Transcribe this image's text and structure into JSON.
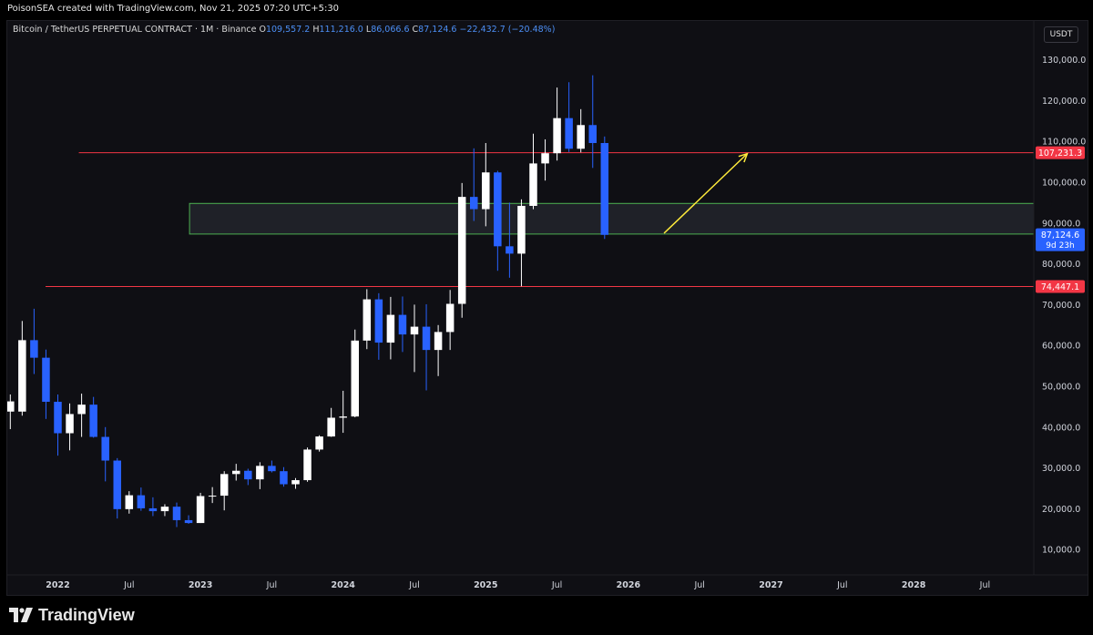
{
  "header": {
    "attribution": "PoisonSEA created with TradingView.com, Nov 21, 2025 07:20 UTC+5:30"
  },
  "legend": {
    "symbol": "Bitcoin / TetherUS PERPETUAL CONTRACT · 1M · Binance",
    "o_label": "O",
    "o_value": "109,557.2",
    "h_label": "H",
    "h_value": "111,216.0",
    "l_label": "L",
    "l_value": "86,066.6",
    "c_label": "C",
    "c_value": "87,124.6",
    "change": "−22,432.7 (−20.48%)"
  },
  "currency_button": "USDT",
  "branding": "TradingView",
  "colors": {
    "up_body": "#ffffff",
    "down_body": "#2962ff",
    "up_wick": "#ffffff",
    "down_wick": "#2962ff",
    "resistance_line": "#f23645",
    "zone_border": "#4caf50",
    "zone_fill": "#22252c",
    "arrow": "#ffeb3b",
    "axis_text": "#d1d4dc",
    "last_price_label": "#2962ff",
    "level_label": "#f23645"
  },
  "chart_data": {
    "type": "candlestick",
    "symbol": "BTCUSDT.P",
    "interval": "1M",
    "ylim": [
      0,
      137000
    ],
    "y_ticks": [
      10000,
      20000,
      30000,
      40000,
      50000,
      60000,
      70000,
      80000,
      90000,
      100000,
      110000,
      120000,
      130000
    ],
    "y_tick_labels": [
      "10,000.0",
      "20,000.0",
      "30,000.0",
      "40,000.0",
      "50,000.0",
      "60,000.0",
      "70,000.0",
      "80,000.0",
      "90,000.0",
      "100,000.0",
      "110,000.0",
      "120,000.0",
      "130,000.0"
    ],
    "x_ticks": [
      {
        "label": "2022",
        "month": 0
      },
      {
        "label": "Jul",
        "month": 6
      },
      {
        "label": "2023",
        "month": 12
      },
      {
        "label": "Jul",
        "month": 18
      },
      {
        "label": "2024",
        "month": 24
      },
      {
        "label": "Jul",
        "month": 30
      },
      {
        "label": "2025",
        "month": 36
      },
      {
        "label": "Jul",
        "month": 42
      },
      {
        "label": "2026",
        "month": 48
      },
      {
        "label": "Jul",
        "month": 54
      },
      {
        "label": "2027",
        "month": 60
      },
      {
        "label": "Jul",
        "month": 66
      },
      {
        "label": "2028",
        "month": 72
      },
      {
        "label": "Jul",
        "month": 78
      }
    ],
    "x_range_months": [
      -4,
      83
    ],
    "candles": [
      {
        "m": -4,
        "o": 43800,
        "h": 48000,
        "l": 39500,
        "c": 46300
      },
      {
        "m": -3,
        "o": 43800,
        "h": 66000,
        "l": 42800,
        "c": 61300
      },
      {
        "m": -2,
        "o": 61300,
        "h": 69000,
        "l": 53000,
        "c": 57000
      },
      {
        "m": -1,
        "o": 57000,
        "h": 59000,
        "l": 42000,
        "c": 46200
      },
      {
        "m": 0,
        "o": 46200,
        "h": 48000,
        "l": 33000,
        "c": 38500
      },
      {
        "m": 1,
        "o": 38500,
        "h": 45800,
        "l": 34300,
        "c": 43200
      },
      {
        "m": 2,
        "o": 43200,
        "h": 48200,
        "l": 37600,
        "c": 45500
      },
      {
        "m": 3,
        "o": 45500,
        "h": 47400,
        "l": 37400,
        "c": 37600
      },
      {
        "m": 4,
        "o": 37600,
        "h": 40000,
        "l": 26700,
        "c": 31800
      },
      {
        "m": 5,
        "o": 31800,
        "h": 32400,
        "l": 17600,
        "c": 19900
      },
      {
        "m": 6,
        "o": 19900,
        "h": 24300,
        "l": 18800,
        "c": 23300
      },
      {
        "m": 7,
        "o": 23300,
        "h": 25200,
        "l": 19500,
        "c": 20100
      },
      {
        "m": 8,
        "o": 20100,
        "h": 22800,
        "l": 18200,
        "c": 19400
      },
      {
        "m": 9,
        "o": 19400,
        "h": 21100,
        "l": 18200,
        "c": 20500
      },
      {
        "m": 10,
        "o": 20500,
        "h": 21500,
        "l": 15500,
        "c": 17200
      },
      {
        "m": 11,
        "o": 17200,
        "h": 18400,
        "l": 16300,
        "c": 16500
      },
      {
        "m": 12,
        "o": 16500,
        "h": 23900,
        "l": 16500,
        "c": 23100
      },
      {
        "m": 13,
        "o": 23100,
        "h": 25300,
        "l": 21400,
        "c": 23200
      },
      {
        "m": 14,
        "o": 23200,
        "h": 29200,
        "l": 19600,
        "c": 28500
      },
      {
        "m": 15,
        "o": 28500,
        "h": 31000,
        "l": 26900,
        "c": 29300
      },
      {
        "m": 16,
        "o": 29300,
        "h": 29800,
        "l": 25800,
        "c": 27200
      },
      {
        "m": 17,
        "o": 27200,
        "h": 31400,
        "l": 24800,
        "c": 30500
      },
      {
        "m": 18,
        "o": 30500,
        "h": 31800,
        "l": 28900,
        "c": 29200
      },
      {
        "m": 19,
        "o": 29200,
        "h": 30200,
        "l": 25400,
        "c": 26000
      },
      {
        "m": 20,
        "o": 26000,
        "h": 27500,
        "l": 24900,
        "c": 27000
      },
      {
        "m": 21,
        "o": 27000,
        "h": 35000,
        "l": 26600,
        "c": 34500
      },
      {
        "m": 22,
        "o": 34500,
        "h": 38000,
        "l": 34000,
        "c": 37700
      },
      {
        "m": 23,
        "o": 37700,
        "h": 44700,
        "l": 37600,
        "c": 42300
      },
      {
        "m": 24,
        "o": 42300,
        "h": 48900,
        "l": 38600,
        "c": 42600
      },
      {
        "m": 25,
        "o": 42600,
        "h": 63900,
        "l": 42400,
        "c": 61200
      },
      {
        "m": 26,
        "o": 61200,
        "h": 73800,
        "l": 59100,
        "c": 71300
      },
      {
        "m": 27,
        "o": 71300,
        "h": 72800,
        "l": 56500,
        "c": 60700
      },
      {
        "m": 28,
        "o": 60700,
        "h": 71900,
        "l": 56600,
        "c": 67500
      },
      {
        "m": 29,
        "o": 67500,
        "h": 72000,
        "l": 58400,
        "c": 62700
      },
      {
        "m": 30,
        "o": 62700,
        "h": 70000,
        "l": 53500,
        "c": 64600
      },
      {
        "m": 31,
        "o": 64600,
        "h": 70100,
        "l": 49000,
        "c": 58900
      },
      {
        "m": 32,
        "o": 58900,
        "h": 65000,
        "l": 52500,
        "c": 63300
      },
      {
        "m": 33,
        "o": 63300,
        "h": 73600,
        "l": 58900,
        "c": 70200
      },
      {
        "m": 34,
        "o": 70200,
        "h": 99800,
        "l": 66800,
        "c": 96400
      },
      {
        "m": 35,
        "o": 96400,
        "h": 108300,
        "l": 90500,
        "c": 93400
      },
      {
        "m": 36,
        "o": 93400,
        "h": 109600,
        "l": 89200,
        "c": 102400
      },
      {
        "m": 37,
        "o": 102400,
        "h": 102800,
        "l": 78300,
        "c": 84300
      },
      {
        "m": 38,
        "o": 84300,
        "h": 95000,
        "l": 76600,
        "c": 82500
      },
      {
        "m": 39,
        "o": 82500,
        "h": 95800,
        "l": 74500,
        "c": 94200
      },
      {
        "m": 40,
        "o": 94200,
        "h": 111900,
        "l": 93400,
        "c": 104600
      },
      {
        "m": 41,
        "o": 104600,
        "h": 110500,
        "l": 100400,
        "c": 107100
      },
      {
        "m": 42,
        "o": 107100,
        "h": 123200,
        "l": 105300,
        "c": 115700
      },
      {
        "m": 43,
        "o": 115700,
        "h": 124500,
        "l": 107400,
        "c": 108200
      },
      {
        "m": 44,
        "o": 108200,
        "h": 117900,
        "l": 107300,
        "c": 114000
      },
      {
        "m": 45,
        "o": 114000,
        "h": 126200,
        "l": 103500,
        "c": 109600
      },
      {
        "m": 46,
        "o": 109600,
        "h": 111200,
        "l": 86100,
        "c": 87100
      }
    ],
    "resistance_levels": [
      {
        "price": 107231.3,
        "label": "107,231.3",
        "from_month": 1,
        "to_month": 83
      },
      {
        "price": 74447.1,
        "label": "74,447.1",
        "from_month": -4,
        "to_month": 83
      }
    ],
    "zone": {
      "top": 94800,
      "bottom": 87300,
      "from_month": 12,
      "to_month": 83
    },
    "arrow": {
      "from": {
        "month": 51,
        "price": 87500
      },
      "to": {
        "month": 58,
        "price": 107000
      }
    },
    "last_price": {
      "value": 87124.6,
      "label": "87,124.6",
      "countdown": "9d 23h"
    }
  }
}
